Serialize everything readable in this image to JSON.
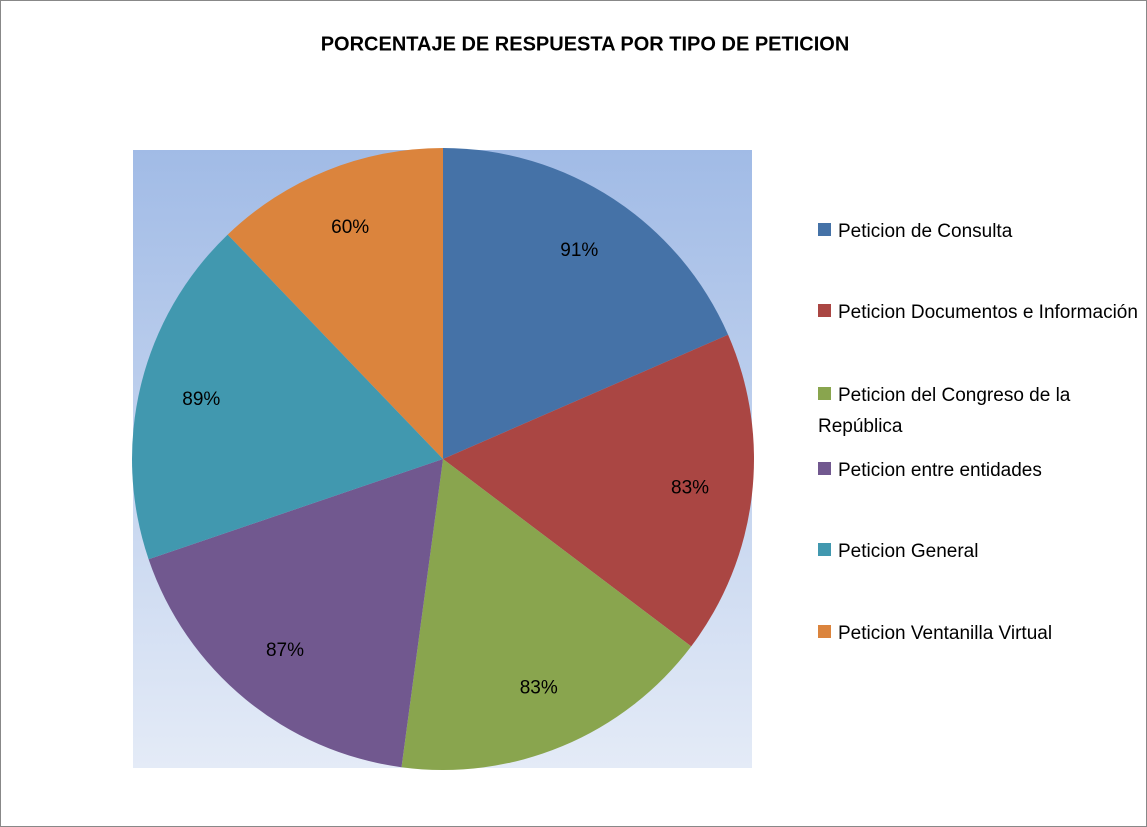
{
  "chart_data": {
    "type": "pie",
    "title": "PORCENTAJE DE RESPUESTA POR TIPO DE PETICION",
    "categories": [
      "Peticion de Consulta",
      "Peticion Documentos e Información",
      "Peticion del Congreso de la República",
      "Peticion entre entidades",
      "Peticion General",
      "Peticion Ventanilla Virtual"
    ],
    "values": [
      91,
      83,
      83,
      87,
      89,
      60
    ],
    "value_labels": [
      "91%",
      "83%",
      "83%",
      "87%",
      "89%",
      "60%"
    ],
    "colors": [
      "#4572a7",
      "#aa4643",
      "#89a54e",
      "#71588f",
      "#4198af",
      "#db843d"
    ],
    "legend": "right"
  }
}
